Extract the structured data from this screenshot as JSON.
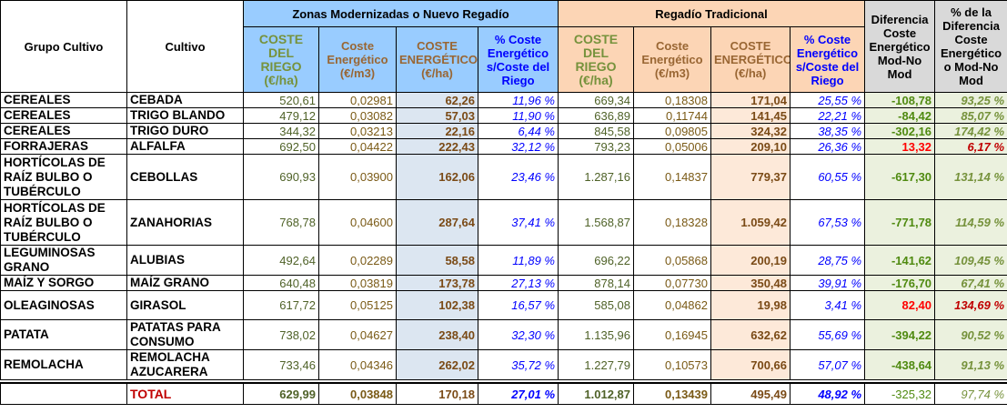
{
  "headers": {
    "group": "Grupo Cultivo",
    "crop": "Cultivo",
    "mod_title": "Zonas Modernizadas o Nuevo Regadío",
    "trad_title": "Regadío Tradicional",
    "diff": "Diferencia Coste Energético Mod-No Mod",
    "diff_pct": "% de la Diferencia Coste Energético o Mod-No Mod",
    "coste_riego": "COSTE DEL RIEGO (€/ha)",
    "coste_m3": "Coste Energético (€/m3)",
    "coste_ha": "COSTE ENERGÉTICO (€/ha)",
    "pct": "% Coste Energético s/Coste del Riego"
  },
  "rows": [
    {
      "group": "CEREALES",
      "crop": "CEBADA",
      "mr": "520,61",
      "mm3": "0,02981",
      "mha": "62,26",
      "mp": "11,96 %",
      "tr": "669,34",
      "tm3": "0,18308",
      "tha": "171,04",
      "tp": "25,55 %",
      "d": "-108,78",
      "dp": "93,25 %"
    },
    {
      "group": "CEREALES",
      "crop": "TRIGO BLANDO",
      "mr": "479,12",
      "mm3": "0,03082",
      "mha": "57,03",
      "mp": "11,90 %",
      "tr": "636,89",
      "tm3": "0,11744",
      "tha": "141,45",
      "tp": "22,21 %",
      "d": "-84,42",
      "dp": "85,07 %"
    },
    {
      "group": "CEREALES",
      "crop": "TRIGO DURO",
      "mr": "344,32",
      "mm3": "0,03213",
      "mha": "22,16",
      "mp": "6,44 %",
      "tr": "845,58",
      "tm3": "0,09805",
      "tha": "324,32",
      "tp": "38,35 %",
      "d": "-302,16",
      "dp": "174,42 %"
    },
    {
      "group": "FORRAJERAS",
      "crop": "ALFALFA",
      "mr": "692,50",
      "mm3": "0,04422",
      "mha": "222,43",
      "mp": "32,12 %",
      "tr": "793,23",
      "tm3": "0,05006",
      "tha": "209,10",
      "tp": "26,36 %",
      "d": "13,32",
      "dp": "6,17 %"
    },
    {
      "group": "HORTÍCOLAS DE RAÍZ BULBO O TUBÉRCULO",
      "crop": "CEBOLLAS",
      "mr": "690,93",
      "mm3": "0,03900",
      "mha": "162,06",
      "mp": "23,46 %",
      "tr": "1.287,16",
      "tm3": "0,14837",
      "tha": "779,37",
      "tp": "60,55 %",
      "d": "-617,30",
      "dp": "131,14 %"
    },
    {
      "group": "HORTÍCOLAS DE RAÍZ BULBO O TUBÉRCULO",
      "crop": "ZANAHORIAS",
      "mr": "768,78",
      "mm3": "0,04600",
      "mha": "287,64",
      "mp": "37,41 %",
      "tr": "1.568,87",
      "tm3": "0,18328",
      "tha": "1.059,42",
      "tp": "67,53 %",
      "d": "-771,78",
      "dp": "114,59 %"
    },
    {
      "group": "LEGUMINOSAS GRANO",
      "crop": "ALUBIAS",
      "mr": "492,64",
      "mm3": "0,02289",
      "mha": "58,58",
      "mp": "11,89 %",
      "tr": "696,22",
      "tm3": "0,05868",
      "tha": "200,19",
      "tp": "28,75 %",
      "d": "-141,62",
      "dp": "109,45 %"
    },
    {
      "group": "MAÍZ Y SORGO",
      "crop": "MAÍZ GRANO",
      "mr": "640,48",
      "mm3": "0,03819",
      "mha": "173,78",
      "mp": "27,13 %",
      "tr": "878,14",
      "tm3": "0,07730",
      "tha": "350,48",
      "tp": "39,91 %",
      "d": "-176,70",
      "dp": "67,41 %"
    },
    {
      "group": "OLEAGINOSAS",
      "crop": "GIRASOL",
      "mr": "617,72",
      "mm3": "0,05125",
      "mha": "102,38",
      "mp": "16,57 %",
      "tr": "585,08",
      "tm3": "0,04862",
      "tha": "19,98",
      "tp": "3,41 %",
      "d": "82,40",
      "dp": "134,69 %"
    },
    {
      "group": "PATATA",
      "crop": "PATATAS PARA CONSUMO",
      "mr": "738,02",
      "mm3": "0,04627",
      "mha": "238,40",
      "mp": "32,30 %",
      "tr": "1.135,96",
      "tm3": "0,16945",
      "tha": "632,62",
      "tp": "55,69 %",
      "d": "-394,22",
      "dp": "90,52 %"
    },
    {
      "group": "REMOLACHA",
      "crop": "REMOLACHA AZUCARERA",
      "mr": "733,46",
      "mm3": "0,04346",
      "mha": "262,02",
      "mp": "35,72 %",
      "tr": "1.227,79",
      "tm3": "0,10573",
      "tha": "700,66",
      "tp": "57,07 %",
      "d": "-438,64",
      "dp": "91,13 %"
    }
  ],
  "total": {
    "label": "TOTAL",
    "mr": "629,99",
    "mm3": "0,03848",
    "mha": "170,18",
    "mp": "27,01 %",
    "tr": "1.012,87",
    "tm3": "0,13439",
    "tha": "495,49",
    "tp": "48,92 %",
    "d": "-325,32",
    "dp": "97,74 %"
  },
  "colors": {
    "mod_header": "#99ccff",
    "trad_header": "#fcd5b5",
    "diff_header": "#d9d9d9",
    "positive_diff": "#ff0000"
  }
}
